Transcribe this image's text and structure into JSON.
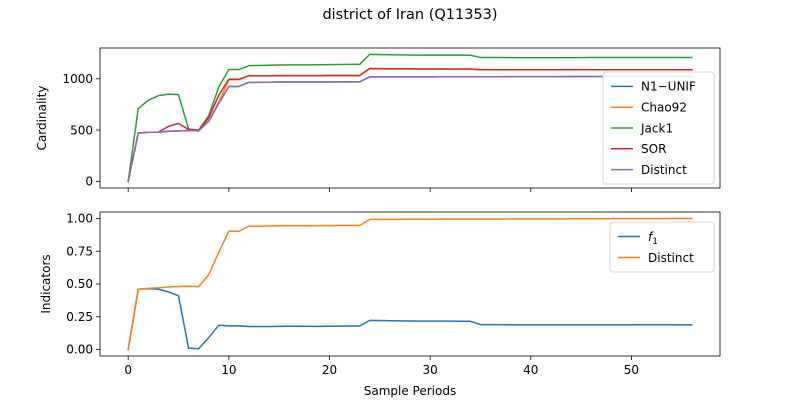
{
  "figure": {
    "title": "district of Iran (Q11353)",
    "xlabel": "Sample Periods"
  },
  "chart_data": [
    {
      "type": "line",
      "ylabel": "Cardinality",
      "xlim": [
        -2.8,
        58.8
      ],
      "ylim": [
        -65,
        1300
      ],
      "xticks": [
        0,
        10,
        20,
        30,
        40,
        50
      ],
      "xtick_labels": [
        "",
        "",
        "",
        "",
        "",
        ""
      ],
      "yticks": [
        0,
        500,
        1000
      ],
      "ytick_labels": [
        "0",
        "500",
        "1000"
      ],
      "legend_position": "right",
      "series": [
        {
          "name": "N1−UNIF",
          "color": "#1f77b4",
          "x": [
            0,
            1,
            2,
            3,
            4,
            5,
            6,
            7,
            8,
            9,
            10,
            11,
            12,
            13,
            14,
            15,
            16,
            17,
            18,
            19,
            20,
            21,
            22,
            23,
            24,
            25,
            26,
            27,
            28,
            29,
            30,
            31,
            32,
            33,
            34,
            35,
            36,
            37,
            38,
            39,
            40,
            41,
            42,
            43,
            44,
            45,
            46,
            47,
            48,
            49,
            50,
            51,
            52,
            53,
            54,
            55,
            56
          ],
          "y": [
            0,
            470,
            478,
            480,
            488,
            492,
            495,
            492,
            585,
            760,
            925,
            925,
            965,
            965,
            966,
            968,
            968,
            968,
            968,
            969,
            969,
            970,
            970,
            970,
            1018,
            1018,
            1018,
            1018,
            1019,
            1019,
            1019,
            1020,
            1020,
            1020,
            1020,
            1020,
            1020,
            1020,
            1021,
            1021,
            1021,
            1021,
            1021,
            1021,
            1022,
            1022,
            1022,
            1022,
            1023,
            1023,
            1023,
            1023,
            1023,
            1023,
            1024,
            1024,
            1024
          ]
        },
        {
          "name": "Chao92",
          "color": "#ff7f0e",
          "x": [
            0,
            1,
            2,
            3,
            4,
            5,
            6,
            7,
            8,
            9,
            10,
            11,
            12,
            13,
            14,
            15,
            16,
            17,
            18,
            19,
            20,
            21,
            22,
            23,
            24,
            25,
            26,
            27,
            28,
            29,
            30,
            31,
            32,
            33,
            34,
            35,
            36,
            37,
            38,
            39,
            40,
            41,
            42,
            43,
            44,
            45,
            46,
            47,
            48,
            49,
            50,
            51,
            52,
            53,
            54,
            55,
            56
          ],
          "y": [
            0,
            470,
            478,
            480,
            488,
            492,
            495,
            492,
            590,
            770,
            990,
            990,
            1030,
            1030,
            1030,
            1031,
            1031,
            1031,
            1031,
            1031,
            1032,
            1032,
            1032,
            1032,
            1100,
            1098,
            1097,
            1096,
            1096,
            1095,
            1095,
            1095,
            1094,
            1094,
            1094,
            1088,
            1088,
            1088,
            1088,
            1088,
            1088,
            1088,
            1088,
            1088,
            1088,
            1088,
            1088,
            1088,
            1088,
            1088,
            1088,
            1088,
            1088,
            1088,
            1088,
            1088,
            1088
          ]
        },
        {
          "name": "Jack1",
          "color": "#2ca02c",
          "x": [
            0,
            1,
            2,
            3,
            4,
            5,
            6,
            7,
            8,
            9,
            10,
            11,
            12,
            13,
            14,
            15,
            16,
            17,
            18,
            19,
            20,
            21,
            22,
            23,
            24,
            25,
            26,
            27,
            28,
            29,
            30,
            31,
            32,
            33,
            34,
            35,
            36,
            37,
            38,
            39,
            40,
            41,
            42,
            43,
            44,
            45,
            46,
            47,
            48,
            49,
            50,
            51,
            52,
            53,
            54,
            55,
            56
          ],
          "y": [
            0,
            710,
            790,
            835,
            850,
            845,
            510,
            500,
            640,
            920,
            1090,
            1090,
            1128,
            1130,
            1132,
            1134,
            1135,
            1136,
            1136,
            1137,
            1138,
            1139,
            1140,
            1140,
            1238,
            1236,
            1234,
            1233,
            1232,
            1231,
            1230,
            1230,
            1230,
            1230,
            1229,
            1208,
            1207,
            1207,
            1206,
            1206,
            1206,
            1206,
            1206,
            1206,
            1206,
            1206,
            1207,
            1207,
            1207,
            1207,
            1207,
            1208,
            1208,
            1208,
            1208,
            1208,
            1208
          ]
        },
        {
          "name": "SOR",
          "color": "#d62728",
          "x": [
            0,
            1,
            2,
            3,
            4,
            5,
            6,
            7,
            8,
            9,
            10,
            11,
            12,
            13,
            14,
            15,
            16,
            17,
            18,
            19,
            20,
            21,
            22,
            23,
            24,
            25,
            26,
            27,
            28,
            29,
            30,
            31,
            32,
            33,
            34,
            35,
            36,
            37,
            38,
            39,
            40,
            41,
            42,
            43,
            44,
            45,
            46,
            47,
            48,
            49,
            50,
            51,
            52,
            53,
            54,
            55,
            56
          ],
          "y": [
            0,
            470,
            478,
            480,
            535,
            565,
            505,
            495,
            620,
            840,
            995,
            995,
            1030,
            1030,
            1030,
            1031,
            1031,
            1031,
            1031,
            1031,
            1032,
            1032,
            1032,
            1032,
            1100,
            1098,
            1097,
            1096,
            1096,
            1095,
            1095,
            1095,
            1094,
            1094,
            1094,
            1088,
            1088,
            1088,
            1088,
            1088,
            1088,
            1088,
            1088,
            1088,
            1088,
            1088,
            1088,
            1088,
            1088,
            1088,
            1088,
            1088,
            1088,
            1088,
            1088,
            1088,
            1088
          ]
        },
        {
          "name": "Distinct",
          "color": "#9467bd",
          "x": [
            0,
            1,
            2,
            3,
            4,
            5,
            6,
            7,
            8,
            9,
            10,
            11,
            12,
            13,
            14,
            15,
            16,
            17,
            18,
            19,
            20,
            21,
            22,
            23,
            24,
            25,
            26,
            27,
            28,
            29,
            30,
            31,
            32,
            33,
            34,
            35,
            36,
            37,
            38,
            39,
            40,
            41,
            42,
            43,
            44,
            45,
            46,
            47,
            48,
            49,
            50,
            51,
            52,
            53,
            54,
            55,
            56
          ],
          "y": [
            0,
            470,
            478,
            480,
            488,
            492,
            495,
            492,
            585,
            760,
            925,
            925,
            965,
            965,
            966,
            968,
            968,
            968,
            968,
            969,
            969,
            970,
            970,
            970,
            1018,
            1018,
            1018,
            1018,
            1019,
            1019,
            1019,
            1020,
            1020,
            1020,
            1020,
            1020,
            1020,
            1020,
            1021,
            1021,
            1021,
            1021,
            1021,
            1021,
            1022,
            1022,
            1022,
            1022,
            1023,
            1023,
            1023,
            1023,
            1023,
            1023,
            1024,
            1024,
            1024
          ]
        }
      ]
    },
    {
      "type": "line",
      "ylabel": "Indicators",
      "xlim": [
        -2.8,
        58.8
      ],
      "ylim": [
        -0.05,
        1.05
      ],
      "xticks": [
        0,
        10,
        20,
        30,
        40,
        50
      ],
      "xtick_labels": [
        "0",
        "10",
        "20",
        "30",
        "40",
        "50"
      ],
      "yticks": [
        0.0,
        0.25,
        0.5,
        0.75,
        1.0
      ],
      "ytick_labels": [
        "0.00",
        "0.25",
        "0.50",
        "0.75",
        "1.00"
      ],
      "legend_position": "upper right",
      "series": [
        {
          "name": "f1",
          "color": "#1f77b4",
          "x": [
            0,
            1,
            2,
            3,
            4,
            5,
            6,
            7,
            8,
            9,
            10,
            11,
            12,
            13,
            14,
            15,
            16,
            17,
            18,
            19,
            20,
            21,
            22,
            23,
            24,
            25,
            26,
            27,
            28,
            29,
            30,
            31,
            32,
            33,
            34,
            35,
            36,
            37,
            38,
            39,
            40,
            41,
            42,
            43,
            44,
            45,
            46,
            47,
            48,
            49,
            50,
            51,
            52,
            53,
            54,
            55,
            56
          ],
          "y": [
            0,
            0.46,
            0.465,
            0.46,
            0.44,
            0.41,
            0.01,
            0.005,
            0.09,
            0.185,
            0.18,
            0.18,
            0.175,
            0.175,
            0.175,
            0.176,
            0.177,
            0.177,
            0.176,
            0.176,
            0.177,
            0.178,
            0.179,
            0.179,
            0.222,
            0.221,
            0.219,
            0.218,
            0.217,
            0.216,
            0.216,
            0.216,
            0.216,
            0.215,
            0.215,
            0.19,
            0.19,
            0.19,
            0.189,
            0.188,
            0.188,
            0.188,
            0.188,
            0.188,
            0.188,
            0.188,
            0.188,
            0.188,
            0.188,
            0.188,
            0.188,
            0.189,
            0.189,
            0.189,
            0.189,
            0.188,
            0.188
          ]
        },
        {
          "name": "Distinct",
          "color": "#ff7f0e",
          "x": [
            0,
            1,
            2,
            3,
            4,
            5,
            6,
            7,
            8,
            9,
            10,
            11,
            12,
            13,
            14,
            15,
            16,
            17,
            18,
            19,
            20,
            21,
            22,
            23,
            24,
            25,
            26,
            27,
            28,
            29,
            30,
            31,
            32,
            33,
            34,
            35,
            36,
            37,
            38,
            39,
            40,
            41,
            42,
            43,
            44,
            45,
            46,
            47,
            48,
            49,
            50,
            51,
            52,
            53,
            54,
            55,
            56
          ],
          "y": [
            0,
            0.46,
            0.467,
            0.47,
            0.477,
            0.481,
            0.483,
            0.48,
            0.571,
            0.742,
            0.903,
            0.903,
            0.942,
            0.942,
            0.943,
            0.945,
            0.945,
            0.945,
            0.945,
            0.946,
            0.946,
            0.947,
            0.947,
            0.947,
            0.994,
            0.994,
            0.994,
            0.994,
            0.995,
            0.995,
            0.995,
            0.996,
            0.996,
            0.996,
            0.996,
            0.996,
            0.996,
            0.996,
            0.997,
            0.997,
            0.997,
            0.997,
            0.997,
            0.997,
            0.998,
            0.998,
            0.998,
            0.998,
            0.999,
            0.999,
            0.999,
            0.999,
            0.999,
            0.999,
            1.0,
            1.0,
            1.0
          ]
        }
      ]
    }
  ]
}
